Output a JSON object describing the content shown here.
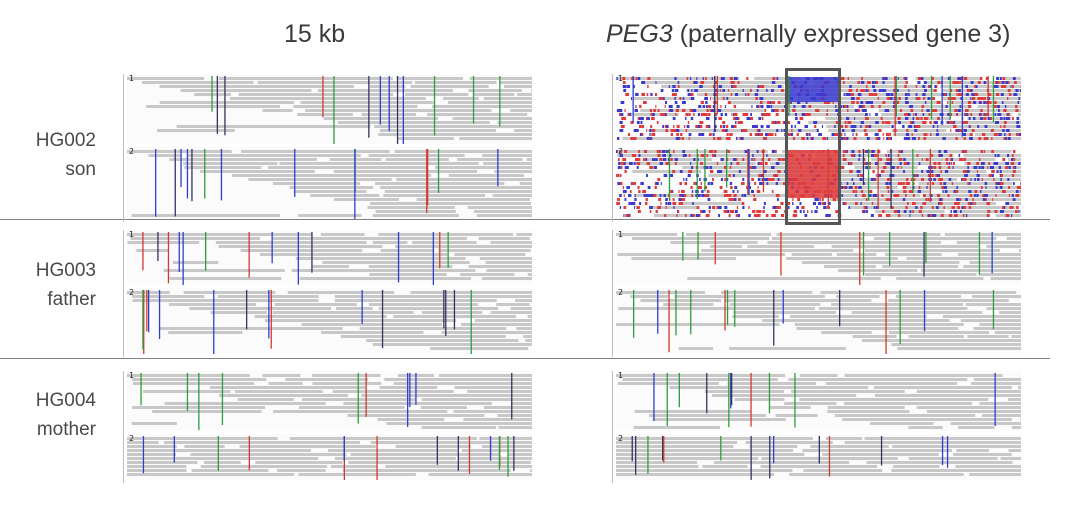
{
  "header": {
    "left_title": "15 kb",
    "right_title_gene": "PEG3",
    "right_title_desc": " (paternally expressed gene 3)"
  },
  "samples": [
    {
      "id": "HG002",
      "relation": "son"
    },
    {
      "id": "HG003",
      "relation": "father"
    },
    {
      "id": "HG004",
      "relation": "mother"
    }
  ],
  "haplotypes": [
    "1",
    "2"
  ],
  "colors": {
    "read": "#c8c8c8",
    "methylated": "#e03a3a",
    "unmethylated": "#3a3ad0",
    "snv_green": "#2e9e3a",
    "snv_red": "#d13b2f",
    "snv_blue": "#2f3fd1",
    "snv_dark": "#333366",
    "highlight_box": "#555555"
  }
}
